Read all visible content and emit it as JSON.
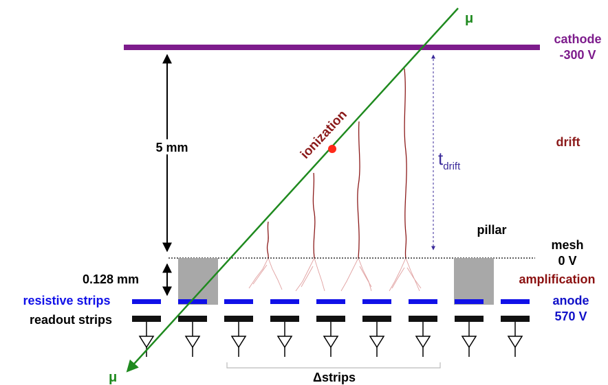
{
  "labels": {
    "muon_top": "μ",
    "muon_bottom": "μ",
    "cathode": "cathode",
    "cathode_voltage": "-300 V",
    "drift": "drift",
    "t_drift_main": "t",
    "t_drift_sub": "drift",
    "ionization": "ionization",
    "drift_gap": "5 mm",
    "pillar": "pillar",
    "mesh": "mesh",
    "mesh_voltage": "0 V",
    "amplification": "amplification",
    "amp_gap": "0.128 mm",
    "resistive_strips": "resistive strips",
    "readout_strips": "readout strips",
    "anode": "anode",
    "anode_voltage": "570 V",
    "delta_strips": "Δstrips"
  },
  "colors": {
    "cathode": "#7d1c8c",
    "muon_track": "#1f8a1f",
    "ionization_point": "#ff2a1a",
    "drift_path": "#8b1a1a",
    "avalanche": "#e0a0a0",
    "pillar": "#a8a8a8",
    "resistive_strip": "#1010e8",
    "readout_strip": "#111111",
    "anode_text": "#1010c8",
    "amplification_text": "#8b1010",
    "t_drift_arrow": "#3a2a9a"
  }
}
